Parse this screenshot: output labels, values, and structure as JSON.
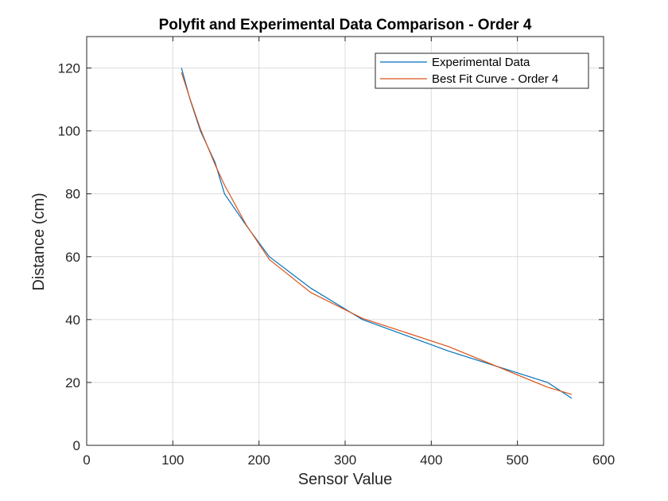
{
  "chart_data": {
    "type": "line",
    "title": "Polyfit and Experimental Data Comparison - Order 4",
    "xlabel": "Sensor Value",
    "ylabel": "Distance (cm)",
    "xlim": [
      0,
      600
    ],
    "ylim": [
      0,
      130
    ],
    "xticks": [
      0,
      100,
      200,
      300,
      400,
      500,
      600
    ],
    "yticks": [
      0,
      20,
      40,
      60,
      80,
      100,
      120
    ],
    "grid": true,
    "legend_position": "top-right",
    "series": [
      {
        "name": "Experimental Data",
        "color": "#0072BD",
        "x": [
          110,
          120,
          132,
          149,
          160,
          185,
          212,
          260,
          320,
          420,
          535,
          563
        ],
        "y": [
          120,
          110,
          100,
          90,
          80,
          70,
          60,
          50,
          40,
          30,
          20,
          15
        ]
      },
      {
        "name": "Best Fit Curve - Order 4",
        "color": "#D95319",
        "x": [
          110,
          120,
          132,
          149,
          160,
          185,
          212,
          260,
          320,
          420,
          535,
          563
        ],
        "y": [
          118.6,
          110.2,
          100.6,
          89.3,
          82.8,
          70.2,
          59.1,
          48.6,
          40.4,
          31.4,
          18.5,
          16.2
        ]
      }
    ]
  }
}
